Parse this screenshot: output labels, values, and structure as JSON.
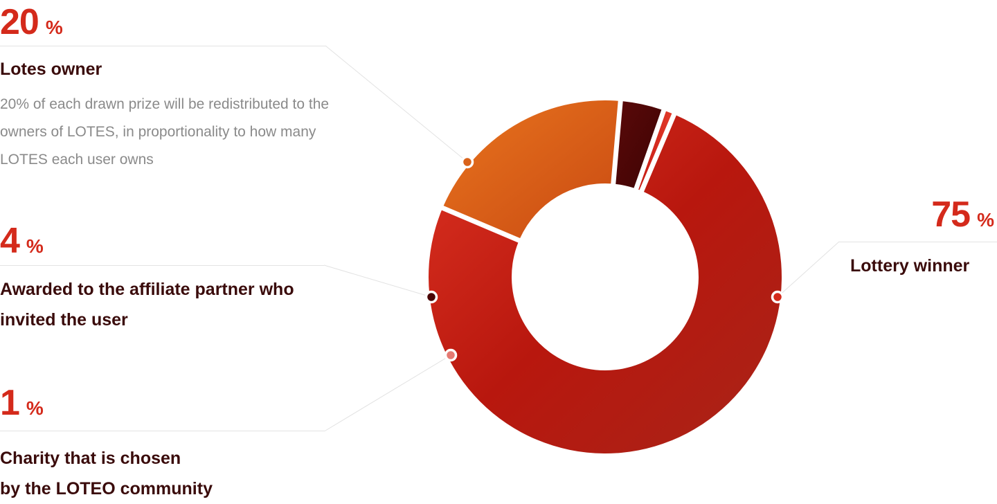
{
  "chart_data": {
    "type": "pie",
    "variant": "donut",
    "unit": "%",
    "slices": [
      {
        "label": "Lottery winner",
        "value": 75,
        "description": "",
        "color": "#c8261a"
      },
      {
        "label": "Lotes owner",
        "value": 20,
        "description": "20% of each drawn prize will be redistributed to the owners of LOTES, in proportionality to how many LOTES each user owns",
        "color": "#e06a1c"
      },
      {
        "label": "Awarded to the affiliate partner who invited the user",
        "value": 4,
        "description": "",
        "color": "#500607"
      },
      {
        "label": "Charity that is chosen by the LOTEO community",
        "value": 1,
        "description": "",
        "color": "#c51a12"
      }
    ],
    "legend": "callouts around the chart"
  },
  "labels": {
    "winner": {
      "value": "75",
      "unit": "%",
      "title": "Lottery winner"
    },
    "owner": {
      "value": "20",
      "unit": "%",
      "title": "Lotes owner",
      "desc": "20% of each drawn prize will be redistributed to the owners of LOTES, in proportionality to how many LOTES each user owns"
    },
    "affiliate": {
      "value": "4",
      "unit": "%",
      "title_line1": "Awarded to the affiliate partner who",
      "title_line2": "invited the user"
    },
    "charity": {
      "value": "1",
      "unit": "%",
      "title_line1": "Charity that is chosen",
      "title_line2": "by the LOTEO community"
    }
  },
  "colors": {
    "accent": "#d42a1b",
    "heading": "#3a0b0b",
    "muted": "#8a8a8a",
    "divider": "#e4e4e4"
  }
}
